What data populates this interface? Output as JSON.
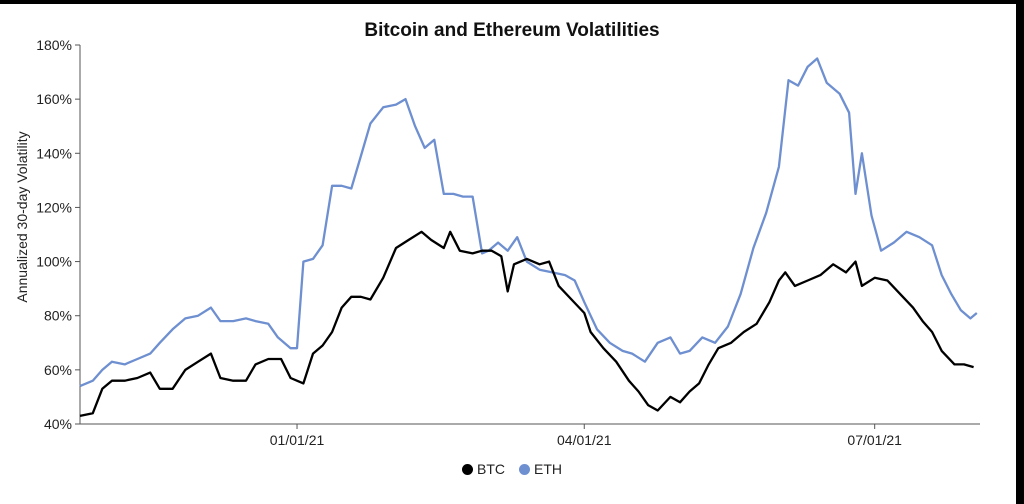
{
  "chart_data": {
    "type": "line",
    "title": "Bitcoin and Ethereum Volatilities",
    "xlabel": "",
    "ylabel": "Annualized 30-day Volatility",
    "y_ticks": [
      "40%",
      "60%",
      "80%",
      "100%",
      "120%",
      "140%",
      "160%",
      "180%"
    ],
    "ylim": [
      40,
      180
    ],
    "xlim": [
      "2020-10-25",
      "2021-08-03"
    ],
    "x_ticks": [
      {
        "date": "2021-01-01",
        "label": "01/01/21"
      },
      {
        "date": "2021-04-01",
        "label": "04/01/21"
      },
      {
        "date": "2021-07-01",
        "label": "07/01/21"
      }
    ],
    "grid": false,
    "legend_position": "bottom-center",
    "series": [
      {
        "name": "BTC",
        "color": "#000000",
        "points": [
          [
            "2020-10-25",
            43
          ],
          [
            "2020-10-29",
            44
          ],
          [
            "2020-11-01",
            53
          ],
          [
            "2020-11-04",
            56
          ],
          [
            "2020-11-08",
            56
          ],
          [
            "2020-11-12",
            57
          ],
          [
            "2020-11-16",
            59
          ],
          [
            "2020-11-19",
            53
          ],
          [
            "2020-11-23",
            53
          ],
          [
            "2020-11-27",
            60
          ],
          [
            "2020-12-01",
            63
          ],
          [
            "2020-12-05",
            66
          ],
          [
            "2020-12-08",
            57
          ],
          [
            "2020-12-12",
            56
          ],
          [
            "2020-12-16",
            56
          ],
          [
            "2020-12-19",
            62
          ],
          [
            "2020-12-23",
            64
          ],
          [
            "2020-12-27",
            64
          ],
          [
            "2020-12-30",
            57
          ],
          [
            "2021-01-03",
            55
          ],
          [
            "2021-01-06",
            66
          ],
          [
            "2021-01-09",
            69
          ],
          [
            "2021-01-12",
            74
          ],
          [
            "2021-01-15",
            83
          ],
          [
            "2021-01-18",
            87
          ],
          [
            "2021-01-21",
            87
          ],
          [
            "2021-01-24",
            86
          ],
          [
            "2021-01-28",
            94
          ],
          [
            "2021-02-01",
            105
          ],
          [
            "2021-02-05",
            108
          ],
          [
            "2021-02-09",
            111
          ],
          [
            "2021-02-12",
            108
          ],
          [
            "2021-02-16",
            105
          ],
          [
            "2021-02-18",
            111
          ],
          [
            "2021-02-21",
            104
          ],
          [
            "2021-02-25",
            103
          ],
          [
            "2021-02-28",
            104
          ],
          [
            "2021-03-03",
            104
          ],
          [
            "2021-03-06",
            102
          ],
          [
            "2021-03-08",
            89
          ],
          [
            "2021-03-10",
            99
          ],
          [
            "2021-03-14",
            101
          ],
          [
            "2021-03-18",
            99
          ],
          [
            "2021-03-21",
            100
          ],
          [
            "2021-03-24",
            91
          ],
          [
            "2021-03-28",
            86
          ],
          [
            "2021-04-01",
            81
          ],
          [
            "2021-04-03",
            74
          ],
          [
            "2021-04-07",
            68
          ],
          [
            "2021-04-11",
            63
          ],
          [
            "2021-04-15",
            56
          ],
          [
            "2021-04-18",
            52
          ],
          [
            "2021-04-21",
            47
          ],
          [
            "2021-04-24",
            45
          ],
          [
            "2021-04-28",
            50
          ],
          [
            "2021-05-01",
            48
          ],
          [
            "2021-05-04",
            52
          ],
          [
            "2021-05-07",
            55
          ],
          [
            "2021-05-10",
            62
          ],
          [
            "2021-05-13",
            68
          ],
          [
            "2021-05-17",
            70
          ],
          [
            "2021-05-21",
            74
          ],
          [
            "2021-05-25",
            77
          ],
          [
            "2021-05-29",
            85
          ],
          [
            "2021-06-01",
            93
          ],
          [
            "2021-06-03",
            96
          ],
          [
            "2021-06-06",
            91
          ],
          [
            "2021-06-10",
            93
          ],
          [
            "2021-06-14",
            95
          ],
          [
            "2021-06-18",
            99
          ],
          [
            "2021-06-22",
            96
          ],
          [
            "2021-06-25",
            100
          ],
          [
            "2021-06-27",
            91
          ],
          [
            "2021-07-01",
            94
          ],
          [
            "2021-07-05",
            93
          ],
          [
            "2021-07-09",
            88
          ],
          [
            "2021-07-13",
            83
          ],
          [
            "2021-07-16",
            78
          ],
          [
            "2021-07-19",
            74
          ],
          [
            "2021-07-22",
            67
          ],
          [
            "2021-07-26",
            62
          ],
          [
            "2021-07-29",
            62
          ],
          [
            "2021-08-01",
            61
          ]
        ]
      },
      {
        "name": "ETH",
        "color": "#6e8fd0",
        "points": [
          [
            "2020-10-25",
            54
          ],
          [
            "2020-10-29",
            56
          ],
          [
            "2020-11-01",
            60
          ],
          [
            "2020-11-04",
            63
          ],
          [
            "2020-11-08",
            62
          ],
          [
            "2020-11-12",
            64
          ],
          [
            "2020-11-16",
            66
          ],
          [
            "2020-11-19",
            70
          ],
          [
            "2020-11-23",
            75
          ],
          [
            "2020-11-27",
            79
          ],
          [
            "2020-12-01",
            80
          ],
          [
            "2020-12-05",
            83
          ],
          [
            "2020-12-08",
            78
          ],
          [
            "2020-12-12",
            78
          ],
          [
            "2020-12-16",
            79
          ],
          [
            "2020-12-19",
            78
          ],
          [
            "2020-12-23",
            77
          ],
          [
            "2020-12-26",
            72
          ],
          [
            "2020-12-30",
            68
          ],
          [
            "2021-01-01",
            68
          ],
          [
            "2021-01-03",
            100
          ],
          [
            "2021-01-06",
            101
          ],
          [
            "2021-01-09",
            106
          ],
          [
            "2021-01-12",
            128
          ],
          [
            "2021-01-15",
            128
          ],
          [
            "2021-01-18",
            127
          ],
          [
            "2021-01-21",
            139
          ],
          [
            "2021-01-24",
            151
          ],
          [
            "2021-01-28",
            157
          ],
          [
            "2021-02-01",
            158
          ],
          [
            "2021-02-04",
            160
          ],
          [
            "2021-02-07",
            150
          ],
          [
            "2021-02-10",
            142
          ],
          [
            "2021-02-13",
            145
          ],
          [
            "2021-02-16",
            125
          ],
          [
            "2021-02-19",
            125
          ],
          [
            "2021-02-22",
            124
          ],
          [
            "2021-02-25",
            124
          ],
          [
            "2021-02-28",
            103
          ],
          [
            "2021-03-02",
            104
          ],
          [
            "2021-03-05",
            107
          ],
          [
            "2021-03-08",
            104
          ],
          [
            "2021-03-11",
            109
          ],
          [
            "2021-03-14",
            100
          ],
          [
            "2021-03-18",
            97
          ],
          [
            "2021-03-22",
            96
          ],
          [
            "2021-03-26",
            95
          ],
          [
            "2021-03-29",
            93
          ],
          [
            "2021-04-01",
            85
          ],
          [
            "2021-04-05",
            75
          ],
          [
            "2021-04-09",
            70
          ],
          [
            "2021-04-13",
            67
          ],
          [
            "2021-04-16",
            66
          ],
          [
            "2021-04-20",
            63
          ],
          [
            "2021-04-24",
            70
          ],
          [
            "2021-04-28",
            72
          ],
          [
            "2021-05-01",
            66
          ],
          [
            "2021-05-04",
            67
          ],
          [
            "2021-05-08",
            72
          ],
          [
            "2021-05-12",
            70
          ],
          [
            "2021-05-16",
            76
          ],
          [
            "2021-05-20",
            88
          ],
          [
            "2021-05-24",
            105
          ],
          [
            "2021-05-28",
            118
          ],
          [
            "2021-06-01",
            135
          ],
          [
            "2021-06-04",
            167
          ],
          [
            "2021-06-07",
            165
          ],
          [
            "2021-06-10",
            172
          ],
          [
            "2021-06-13",
            175
          ],
          [
            "2021-06-16",
            166
          ],
          [
            "2021-06-20",
            162
          ],
          [
            "2021-06-23",
            155
          ],
          [
            "2021-06-25",
            125
          ],
          [
            "2021-06-27",
            140
          ],
          [
            "2021-06-30",
            117
          ],
          [
            "2021-07-03",
            104
          ],
          [
            "2021-07-07",
            107
          ],
          [
            "2021-07-11",
            111
          ],
          [
            "2021-07-15",
            109
          ],
          [
            "2021-07-19",
            106
          ],
          [
            "2021-07-22",
            95
          ],
          [
            "2021-07-25",
            88
          ],
          [
            "2021-07-28",
            82
          ],
          [
            "2021-07-31",
            79
          ],
          [
            "2021-08-02",
            81
          ]
        ]
      }
    ]
  }
}
